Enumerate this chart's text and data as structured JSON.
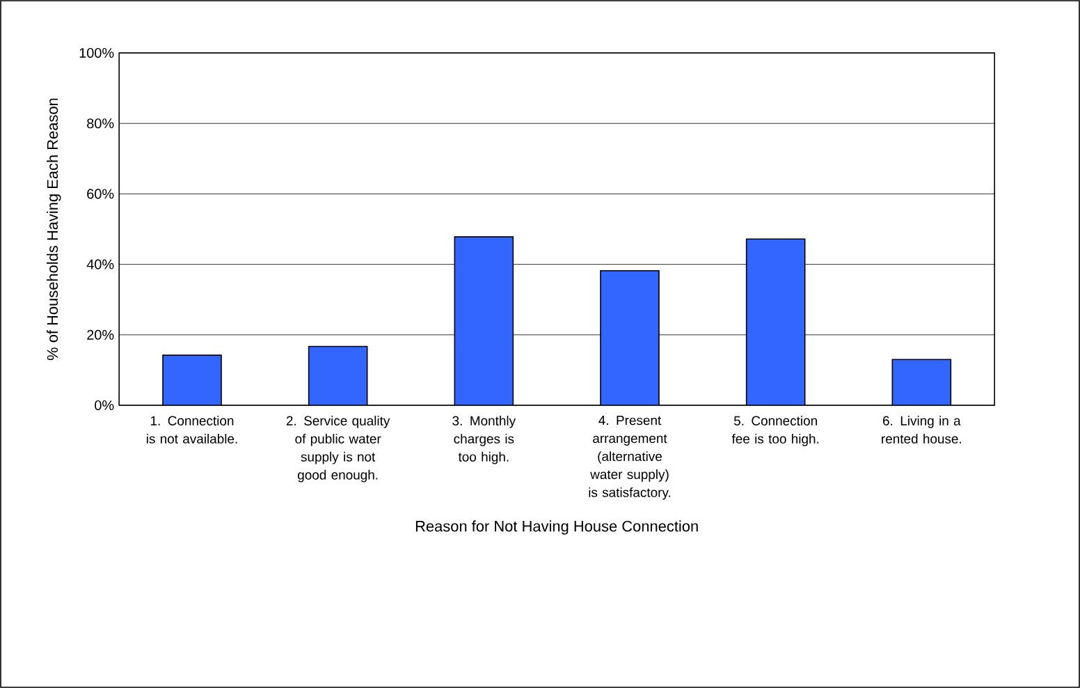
{
  "chart_data": {
    "type": "bar",
    "xlabel": "Reason for Not Having House Connection",
    "ylabel": "% of Households Having Each Reason",
    "categories": [
      "1. Connection is not available.",
      "2. Service quality of public water supply is not good enough.",
      "3. Monthly charges is too high.",
      "4. Present arrangement (alternative water supply) is satisfactory.",
      "5. Connection fee is too high.",
      "6. Living in a rented house."
    ],
    "values": [
      14.2,
      16.7,
      47.8,
      38.2,
      47.2,
      13.0
    ],
    "color": "#3366ff",
    "ylim": [
      0,
      100
    ],
    "yticks": [
      {
        "value": 0,
        "label": "0%"
      },
      {
        "value": 20,
        "label": "20%"
      },
      {
        "value": 40,
        "label": "40%"
      },
      {
        "value": 60,
        "label": "60%"
      },
      {
        "value": 80,
        "label": "80%"
      },
      {
        "value": 100,
        "label": "100%"
      }
    ],
    "grid": "y"
  }
}
